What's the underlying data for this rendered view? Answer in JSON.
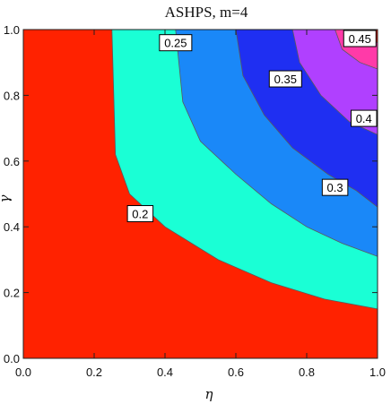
{
  "chart_data": {
    "type": "contour",
    "title": "ASHPS, m=4",
    "xlabel": "η",
    "ylabel": "γ",
    "xlim": [
      0,
      1
    ],
    "ylim": [
      0,
      1
    ],
    "xticks": [
      "0.0",
      "0.2",
      "0.4",
      "0.6",
      "0.8",
      "1.0"
    ],
    "yticks": [
      "0.0",
      "0.2",
      "0.4",
      "0.6",
      "0.8",
      "1.0"
    ],
    "levels": [
      {
        "label": "0.2",
        "value": 0.2,
        "color": "#ff2200"
      },
      {
        "label": "0.25",
        "value": 0.25,
        "color": "#1affd5"
      },
      {
        "label": "0.3",
        "value": 0.3,
        "color": "#1a88f8"
      },
      {
        "label": "0.35",
        "value": 0.35,
        "color": "#1f2ff2"
      },
      {
        "label": "0.4",
        "value": 0.4,
        "color": "#b040ff"
      },
      {
        "label": "0.45",
        "value": 0.45,
        "color": "#ff3aa8"
      }
    ],
    "top_band_color": "#ff2200",
    "contour_lines": [
      {
        "level": 0.2,
        "points": [
          [
            0.25,
            1.0
          ],
          [
            0.26,
            0.62
          ],
          [
            0.3,
            0.5
          ],
          [
            0.4,
            0.4
          ],
          [
            0.55,
            0.3
          ],
          [
            0.7,
            0.23
          ],
          [
            0.85,
            0.18
          ],
          [
            1.0,
            0.15
          ]
        ]
      },
      {
        "level": 0.25,
        "points": [
          [
            0.43,
            1.0
          ],
          [
            0.45,
            0.78
          ],
          [
            0.5,
            0.66
          ],
          [
            0.6,
            0.56
          ],
          [
            0.7,
            0.47
          ],
          [
            0.8,
            0.4
          ],
          [
            0.9,
            0.35
          ],
          [
            1.0,
            0.31
          ]
        ]
      },
      {
        "level": 0.3,
        "points": [
          [
            0.6,
            1.0
          ],
          [
            0.62,
            0.86
          ],
          [
            0.68,
            0.74
          ],
          [
            0.76,
            0.64
          ],
          [
            0.86,
            0.56
          ],
          [
            0.94,
            0.51
          ],
          [
            1.0,
            0.46
          ]
        ]
      },
      {
        "level": 0.35,
        "points": [
          [
            0.76,
            1.0
          ],
          [
            0.78,
            0.9
          ],
          [
            0.84,
            0.8
          ],
          [
            0.92,
            0.72
          ],
          [
            1.0,
            0.68
          ]
        ]
      },
      {
        "level": 0.4,
        "points": [
          [
            0.88,
            1.0
          ],
          [
            0.9,
            0.94
          ],
          [
            0.95,
            0.9
          ],
          [
            1.0,
            0.88
          ]
        ]
      },
      {
        "level": 0.45,
        "points": [
          [
            0.97,
            1.0
          ],
          [
            0.98,
            0.97
          ],
          [
            1.0,
            0.96
          ]
        ]
      }
    ],
    "contour_labels": [
      {
        "text": "0.2",
        "x": 0.33,
        "y": 0.44
      },
      {
        "text": "0.25",
        "x": 0.43,
        "y": 0.96
      },
      {
        "text": "0.3",
        "x": 0.88,
        "y": 0.52
      },
      {
        "text": "0.35",
        "x": 0.74,
        "y": 0.85
      },
      {
        "text": "0.4",
        "x": 0.97,
        "y": 0.73
      },
      {
        "text": "0.45",
        "x": 0.95,
        "y": 1.0
      }
    ]
  }
}
